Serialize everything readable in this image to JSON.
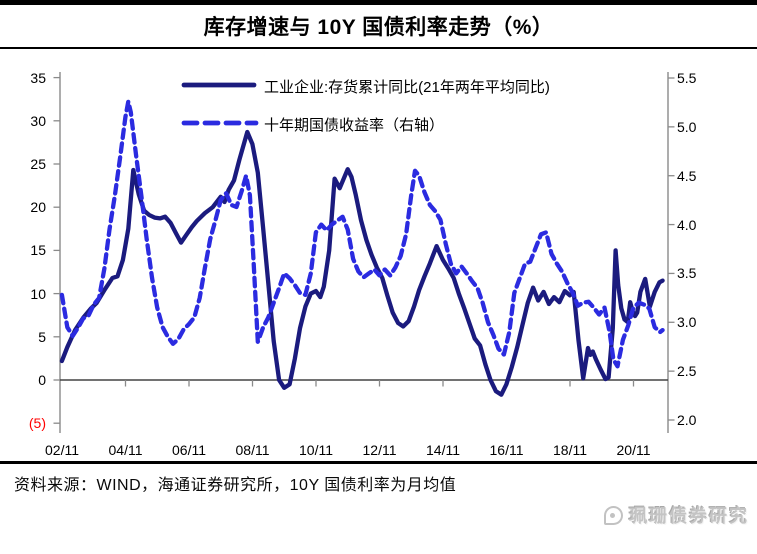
{
  "title": "库存增速与 10Y 国债利率走势（%）",
  "footer": {
    "source_text": "资料来源：WIND，海通证券研究所，10Y 国债利率为月均值",
    "watermark_text": "珮珊债券研究",
    "watermark_icon": "megaphone-icon"
  },
  "colors": {
    "inventory_line": "#1b1b7e",
    "yield_line": "#2b2be0",
    "axis": "#8a8a8a",
    "zero_line": "#444444",
    "negative_tick": "#ff0000",
    "border": "#000000"
  },
  "chart_data": {
    "type": "line",
    "title": "库存增速与 10Y 国债利率走势（%）",
    "grid": false,
    "legend_position": "top-center",
    "x_axis": {
      "labels": [
        "02/11",
        "04/11",
        "06/11",
        "08/11",
        "10/11",
        "12/11",
        "14/11",
        "16/11",
        "18/11",
        "20/11"
      ],
      "label_interval_years": 2,
      "start_t": 2002.833
    },
    "y_axis_left": {
      "ticks": [
        "35",
        "30",
        "25",
        "20",
        "15",
        "10",
        "5",
        "0",
        "(5)"
      ],
      "values": [
        35,
        30,
        25,
        20,
        15,
        10,
        5,
        0,
        -5
      ],
      "range": [
        -5,
        35
      ]
    },
    "y_axis_right": {
      "ticks": [
        "5.5",
        "5.0",
        "4.5",
        "4.0",
        "3.5",
        "3.0",
        "2.5",
        "2.0"
      ],
      "values": [
        5.5,
        5.0,
        4.5,
        4.0,
        3.5,
        3.0,
        2.5,
        2.0
      ],
      "range": [
        2.0,
        5.5
      ]
    },
    "series": [
      {
        "name": "工业企业:存货累计同比(21年两年平均同比)",
        "axis": "left",
        "line": "solid",
        "color": "#1b1b7e",
        "points": [
          [
            2002.83,
            2.2
          ],
          [
            2003.0,
            3.8
          ],
          [
            2003.25,
            5.8
          ],
          [
            2003.5,
            7.2
          ],
          [
            2003.75,
            8.3
          ],
          [
            2003.92,
            8.9
          ],
          [
            2004.17,
            10.4
          ],
          [
            2004.42,
            11.8
          ],
          [
            2004.58,
            12.0
          ],
          [
            2004.75,
            13.9
          ],
          [
            2004.92,
            17.5
          ],
          [
            2005.08,
            24.3
          ],
          [
            2005.25,
            21.5
          ],
          [
            2005.42,
            19.6
          ],
          [
            2005.58,
            19.1
          ],
          [
            2005.75,
            18.8
          ],
          [
            2005.92,
            18.7
          ],
          [
            2006.08,
            18.9
          ],
          [
            2006.25,
            18.2
          ],
          [
            2006.42,
            17.0
          ],
          [
            2006.58,
            15.9
          ],
          [
            2006.75,
            16.8
          ],
          [
            2006.92,
            17.7
          ],
          [
            2007.08,
            18.4
          ],
          [
            2007.33,
            19.3
          ],
          [
            2007.58,
            20.0
          ],
          [
            2007.83,
            21.2
          ],
          [
            2007.95,
            20.6
          ],
          [
            2008.08,
            22.0
          ],
          [
            2008.25,
            23.1
          ],
          [
            2008.42,
            25.5
          ],
          [
            2008.67,
            28.7
          ],
          [
            2008.83,
            27.3
          ],
          [
            2009.0,
            24.0
          ],
          [
            2009.17,
            17.5
          ],
          [
            2009.33,
            11.2
          ],
          [
            2009.5,
            4.5
          ],
          [
            2009.67,
            0.0
          ],
          [
            2009.83,
            -0.9
          ],
          [
            2010.0,
            -0.5
          ],
          [
            2010.17,
            2.5
          ],
          [
            2010.33,
            6.0
          ],
          [
            2010.5,
            8.5
          ],
          [
            2010.67,
            10.0
          ],
          [
            2010.83,
            10.3
          ],
          [
            2010.97,
            9.6
          ],
          [
            2011.08,
            10.8
          ],
          [
            2011.25,
            15.0
          ],
          [
            2011.42,
            23.3
          ],
          [
            2011.58,
            22.2
          ],
          [
            2011.83,
            24.4
          ],
          [
            2011.95,
            23.5
          ],
          [
            2012.08,
            21.5
          ],
          [
            2012.25,
            18.5
          ],
          [
            2012.42,
            16.2
          ],
          [
            2012.58,
            14.5
          ],
          [
            2012.75,
            13.0
          ],
          [
            2012.92,
            11.8
          ],
          [
            2013.08,
            9.8
          ],
          [
            2013.25,
            7.8
          ],
          [
            2013.42,
            6.6
          ],
          [
            2013.58,
            6.2
          ],
          [
            2013.75,
            6.8
          ],
          [
            2013.92,
            8.5
          ],
          [
            2014.08,
            10.4
          ],
          [
            2014.25,
            12.0
          ],
          [
            2014.42,
            13.5
          ],
          [
            2014.63,
            15.5
          ],
          [
            2014.83,
            13.9
          ],
          [
            2015.0,
            12.9
          ],
          [
            2015.17,
            11.8
          ],
          [
            2015.33,
            10.0
          ],
          [
            2015.5,
            8.3
          ],
          [
            2015.67,
            6.5
          ],
          [
            2015.83,
            4.8
          ],
          [
            2016.0,
            4.0
          ],
          [
            2016.17,
            1.8
          ],
          [
            2016.33,
            0.0
          ],
          [
            2016.5,
            -1.3
          ],
          [
            2016.67,
            -1.7
          ],
          [
            2016.83,
            -0.5
          ],
          [
            2017.0,
            1.5
          ],
          [
            2017.17,
            3.8
          ],
          [
            2017.33,
            6.3
          ],
          [
            2017.5,
            8.9
          ],
          [
            2017.67,
            10.7
          ],
          [
            2017.83,
            9.2
          ],
          [
            2018.0,
            10.2
          ],
          [
            2018.17,
            8.8
          ],
          [
            2018.33,
            9.6
          ],
          [
            2018.5,
            9.0
          ],
          [
            2018.67,
            10.3
          ],
          [
            2018.83,
            9.8
          ],
          [
            2018.95,
            10.2
          ],
          [
            2019.1,
            4.6
          ],
          [
            2019.25,
            0.2
          ],
          [
            2019.4,
            3.7
          ],
          [
            2019.47,
            2.9
          ],
          [
            2019.55,
            3.3
          ],
          [
            2019.65,
            2.4
          ],
          [
            2019.8,
            1.2
          ],
          [
            2019.95,
            0.1
          ],
          [
            2020.05,
            0.3
          ],
          [
            2020.18,
            6.0
          ],
          [
            2020.27,
            15.0
          ],
          [
            2020.35,
            11.0
          ],
          [
            2020.45,
            8.3
          ],
          [
            2020.55,
            7.0
          ],
          [
            2020.65,
            6.7
          ],
          [
            2020.73,
            9.0
          ],
          [
            2020.8,
            8.0
          ],
          [
            2020.88,
            7.4
          ],
          [
            2020.95,
            7.8
          ],
          [
            2021.05,
            10.2
          ],
          [
            2021.2,
            11.7
          ],
          [
            2021.35,
            8.5
          ],
          [
            2021.5,
            10.2
          ],
          [
            2021.65,
            11.3
          ],
          [
            2021.75,
            11.5
          ]
        ]
      },
      {
        "name": "十年期国债收益率（右轴）",
        "axis": "right",
        "line": "dashed",
        "color": "#2b2be0",
        "points": [
          [
            2002.83,
            3.28
          ],
          [
            2003.0,
            2.95
          ],
          [
            2003.17,
            2.86
          ],
          [
            2003.33,
            2.94
          ],
          [
            2003.5,
            3.04
          ],
          [
            2003.67,
            3.07
          ],
          [
            2003.83,
            3.18
          ],
          [
            2004.0,
            3.25
          ],
          [
            2004.17,
            3.55
          ],
          [
            2004.33,
            3.95
          ],
          [
            2004.5,
            4.3
          ],
          [
            2004.67,
            4.7
          ],
          [
            2004.83,
            5.1
          ],
          [
            2004.92,
            5.26
          ],
          [
            2005.0,
            5.15
          ],
          [
            2005.17,
            4.7
          ],
          [
            2005.33,
            4.3
          ],
          [
            2005.5,
            3.85
          ],
          [
            2005.67,
            3.45
          ],
          [
            2005.83,
            3.15
          ],
          [
            2006.0,
            2.95
          ],
          [
            2006.17,
            2.85
          ],
          [
            2006.33,
            2.78
          ],
          [
            2006.5,
            2.83
          ],
          [
            2006.67,
            2.93
          ],
          [
            2006.83,
            2.98
          ],
          [
            2007.0,
            3.05
          ],
          [
            2007.17,
            3.25
          ],
          [
            2007.33,
            3.55
          ],
          [
            2007.5,
            3.85
          ],
          [
            2007.67,
            4.05
          ],
          [
            2007.83,
            4.25
          ],
          [
            2008.0,
            4.32
          ],
          [
            2008.17,
            4.2
          ],
          [
            2008.33,
            4.18
          ],
          [
            2008.5,
            4.35
          ],
          [
            2008.63,
            4.5
          ],
          [
            2008.75,
            4.3
          ],
          [
            2008.87,
            3.6
          ],
          [
            2009.0,
            2.8
          ],
          [
            2009.17,
            2.95
          ],
          [
            2009.33,
            3.05
          ],
          [
            2009.5,
            3.2
          ],
          [
            2009.67,
            3.35
          ],
          [
            2009.83,
            3.5
          ],
          [
            2010.0,
            3.45
          ],
          [
            2010.17,
            3.38
          ],
          [
            2010.33,
            3.3
          ],
          [
            2010.5,
            3.28
          ],
          [
            2010.67,
            3.5
          ],
          [
            2010.83,
            3.92
          ],
          [
            2011.0,
            4.0
          ],
          [
            2011.17,
            3.94
          ],
          [
            2011.33,
            4.0
          ],
          [
            2011.5,
            4.04
          ],
          [
            2011.67,
            4.08
          ],
          [
            2011.83,
            3.95
          ],
          [
            2012.0,
            3.65
          ],
          [
            2012.17,
            3.52
          ],
          [
            2012.33,
            3.46
          ],
          [
            2012.5,
            3.5
          ],
          [
            2012.67,
            3.54
          ],
          [
            2012.83,
            3.48
          ],
          [
            2013.0,
            3.54
          ],
          [
            2013.17,
            3.48
          ],
          [
            2013.33,
            3.56
          ],
          [
            2013.5,
            3.68
          ],
          [
            2013.67,
            3.9
          ],
          [
            2013.83,
            4.3
          ],
          [
            2013.95,
            4.55
          ],
          [
            2014.08,
            4.5
          ],
          [
            2014.25,
            4.33
          ],
          [
            2014.42,
            4.2
          ],
          [
            2014.58,
            4.14
          ],
          [
            2014.75,
            4.05
          ],
          [
            2014.92,
            3.8
          ],
          [
            2015.08,
            3.6
          ],
          [
            2015.25,
            3.5
          ],
          [
            2015.42,
            3.57
          ],
          [
            2015.58,
            3.5
          ],
          [
            2015.75,
            3.42
          ],
          [
            2015.92,
            3.35
          ],
          [
            2016.08,
            3.2
          ],
          [
            2016.25,
            3.0
          ],
          [
            2016.42,
            2.87
          ],
          [
            2016.58,
            2.73
          ],
          [
            2016.75,
            2.67
          ],
          [
            2016.92,
            2.9
          ],
          [
            2017.08,
            3.3
          ],
          [
            2017.25,
            3.45
          ],
          [
            2017.42,
            3.6
          ],
          [
            2017.58,
            3.62
          ],
          [
            2017.75,
            3.76
          ],
          [
            2017.92,
            3.9
          ],
          [
            2018.08,
            3.92
          ],
          [
            2018.25,
            3.7
          ],
          [
            2018.42,
            3.6
          ],
          [
            2018.58,
            3.52
          ],
          [
            2018.75,
            3.4
          ],
          [
            2018.92,
            3.3
          ],
          [
            2019.08,
            3.17
          ],
          [
            2019.25,
            3.2
          ],
          [
            2019.42,
            3.21
          ],
          [
            2019.58,
            3.15
          ],
          [
            2019.75,
            3.08
          ],
          [
            2019.92,
            3.15
          ],
          [
            2020.08,
            2.9
          ],
          [
            2020.2,
            2.62
          ],
          [
            2020.33,
            2.55
          ],
          [
            2020.5,
            2.82
          ],
          [
            2020.67,
            2.97
          ],
          [
            2020.83,
            3.15
          ],
          [
            2021.0,
            3.2
          ],
          [
            2021.17,
            3.18
          ],
          [
            2021.33,
            3.14
          ],
          [
            2021.5,
            2.95
          ],
          [
            2021.67,
            2.9
          ],
          [
            2021.75,
            2.92
          ]
        ]
      }
    ]
  }
}
